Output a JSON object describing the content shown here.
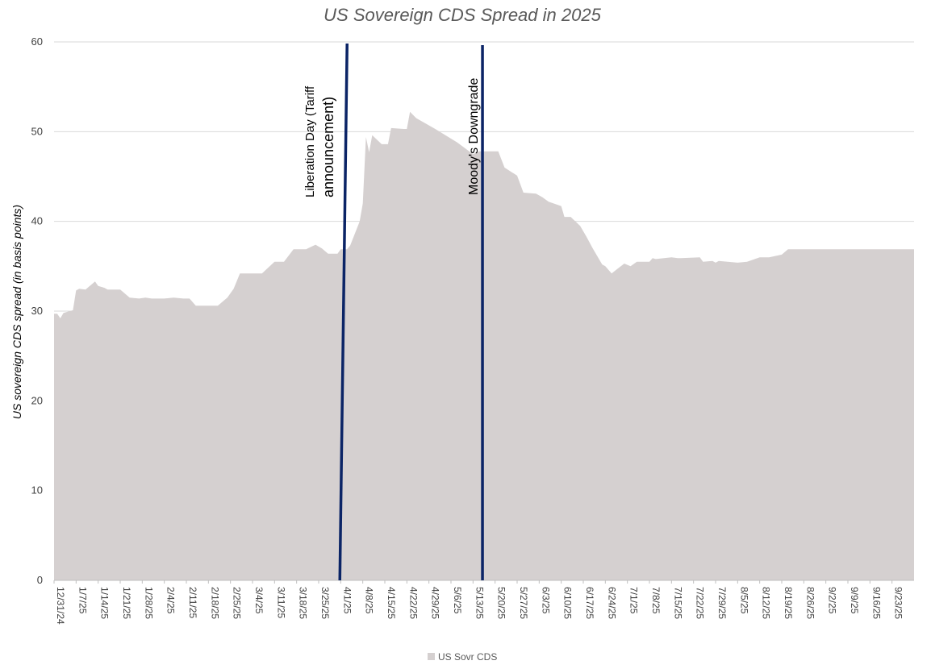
{
  "chart_data": {
    "type": "area",
    "title": "US Sovereign CDS Spread in 2025",
    "xlabel": "",
    "ylabel": "US sovereign CDS spread (in basis points)",
    "ylim": [
      0,
      60
    ],
    "yticks": [
      0,
      10,
      20,
      30,
      40,
      50,
      60
    ],
    "xlim": [
      "12/31/24",
      "9/30/25"
    ],
    "xticks": [
      "12/31/24",
      "1/7/25",
      "1/14/25",
      "1/21/25",
      "1/28/25",
      "2/4/25",
      "2/11/25",
      "2/18/25",
      "2/25/25",
      "3/4/25",
      "3/11/25",
      "3/18/25",
      "3/25/25",
      "4/1/25",
      "4/8/25",
      "4/15/25",
      "4/22/25",
      "4/29/25",
      "5/6/25",
      "5/13/25",
      "5/20/25",
      "5/27/25",
      "6/3/25",
      "6/10/25",
      "6/17/25",
      "6/24/25",
      "7/1/25",
      "7/8/25",
      "7/15/25",
      "7/22/25",
      "7/29/25",
      "8/5/25",
      "8/12/25",
      "8/19/25",
      "8/26/25",
      "9/2/25",
      "9/9/25",
      "9/16/25",
      "9/23/25"
    ],
    "grid": true,
    "legend": {
      "position": "bottom",
      "entries": [
        "US Sovr CDS"
      ]
    },
    "series": [
      {
        "name": "US Sovr CDS",
        "color": "#d5d0d0",
        "x": [
          "12/31/24",
          "1/1/25",
          "1/2/25",
          "1/3/25",
          "1/6/25",
          "1/7/25",
          "1/8/25",
          "1/10/25",
          "1/13/25",
          "1/14/25",
          "1/16/25",
          "1/17/25",
          "1/21/25",
          "1/24/25",
          "1/27/25",
          "1/29/25",
          "1/31/25",
          "2/4/25",
          "2/7/25",
          "2/10/25",
          "2/12/25",
          "2/14/25",
          "2/18/25",
          "2/21/25",
          "2/24/25",
          "2/26/25",
          "2/28/25",
          "3/4/25",
          "3/7/25",
          "3/11/25",
          "3/14/25",
          "3/17/25",
          "3/19/25",
          "3/21/25",
          "3/24/25",
          "3/26/25",
          "3/28/25",
          "3/31/25",
          "4/1/25",
          "4/3/25",
          "4/4/25",
          "4/7/25",
          "4/8/25",
          "4/9/25",
          "4/10/25",
          "4/11/25",
          "4/14/25",
          "4/16/25",
          "4/17/25",
          "4/21/25",
          "4/22/25",
          "4/23/25",
          "4/25/25",
          "5/1/25",
          "5/8/25",
          "5/13/25",
          "5/15/25",
          "5/16/25",
          "5/19/25",
          "5/21/25",
          "5/23/25",
          "5/27/25",
          "5/29/25",
          "6/2/25",
          "6/4/25",
          "6/6/25",
          "6/10/25",
          "6/11/25",
          "6/13/25",
          "6/16/25",
          "6/18/25",
          "6/20/25",
          "6/23/25",
          "6/24/25",
          "6/26/25",
          "6/30/25",
          "7/2/25",
          "7/4/25",
          "7/8/25",
          "7/9/25",
          "7/10/25",
          "7/15/25",
          "7/17/25",
          "7/18/25",
          "7/24/25",
          "7/25/25",
          "7/28/25",
          "7/29/25",
          "7/30/25",
          "8/5/25",
          "8/8/25",
          "8/12/25",
          "8/15/25",
          "8/19/25",
          "8/21/25",
          "8/26/25",
          "8/29/25",
          "9/2/25",
          "9/4/25",
          "9/8/25",
          "9/9/25",
          "9/15/25",
          "9/17/25",
          "9/19/25",
          "9/22/25",
          "9/30/25"
        ],
        "values": [
          29.7,
          29.7,
          29.2,
          29.8,
          30.1,
          32.3,
          32.5,
          32.4,
          33.3,
          32.8,
          32.6,
          32.4,
          32.4,
          31.5,
          31.4,
          31.5,
          31.4,
          31.4,
          31.5,
          31.4,
          31.4,
          30.6,
          30.6,
          30.6,
          31.5,
          32.5,
          34.2,
          34.2,
          34.2,
          35.5,
          35.5,
          36.9,
          36.9,
          36.9,
          37.4,
          37.0,
          36.4,
          36.4,
          36.9,
          36.9,
          37.3,
          40.0,
          42.0,
          49.4,
          47.7,
          49.6,
          48.6,
          48.6,
          50.4,
          50.3,
          50.3,
          52.2,
          51.5,
          50.3,
          48.8,
          47.5,
          47.8,
          47.8,
          47.8,
          47.8,
          46.0,
          45.1,
          43.2,
          43.1,
          42.7,
          42.2,
          41.7,
          40.5,
          40.5,
          39.5,
          38.3,
          37.0,
          35.2,
          35.0,
          34.2,
          35.3,
          35.0,
          35.5,
          35.5,
          35.9,
          35.8,
          36.0,
          35.9,
          35.9,
          36.0,
          35.5,
          35.6,
          35.4,
          35.6,
          35.4,
          35.5,
          36.0,
          36.0,
          36.3,
          36.9,
          36.9,
          36.9,
          36.9,
          36.9,
          36.9,
          36.9,
          36.9,
          36.9,
          36.9,
          36.9,
          36.9
        ]
      }
    ],
    "annotations": [
      {
        "label_line1": "Liberation Day (Tariff",
        "label_line2": "announcement)",
        "date": "4/2/25",
        "color": "#0b2466"
      },
      {
        "label_line1": "Moody's Downgrade",
        "date": "5/16/25",
        "color": "#0b2466"
      }
    ]
  }
}
